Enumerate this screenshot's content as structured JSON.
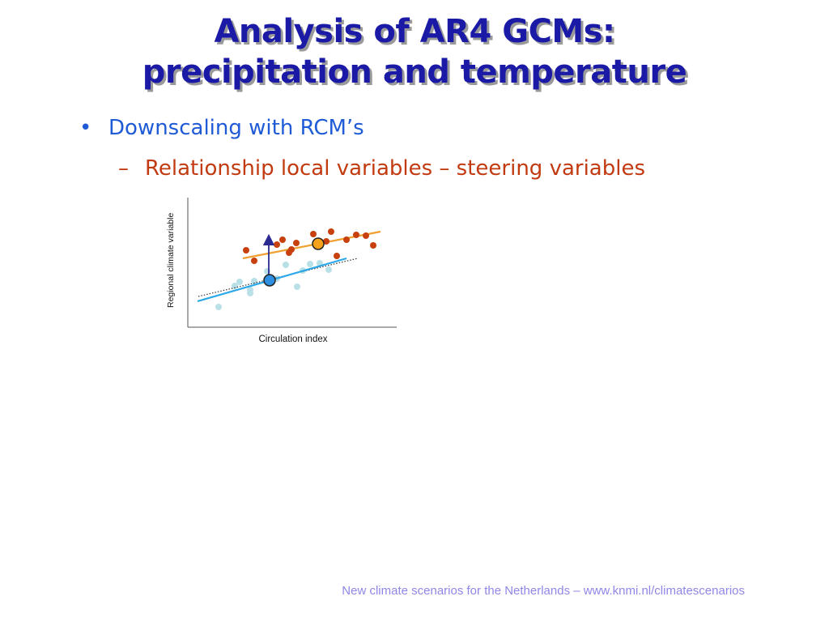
{
  "slide": {
    "title_line1": "Analysis of AR4 GCMs:",
    "title_line2": "precipitation and temperature",
    "bullet_symbol": "•",
    "bullet_text": "Downscaling with RCM’s",
    "sub_symbol": "–",
    "sub_text": "Relationship local variables – steering variables",
    "footer": "New climate scenarios for the Netherlands – www.knmi.nl/climatescenarios"
  },
  "diagram": {
    "ylabel": "Regional climate variable",
    "xlabel": "Circulation index",
    "colors": {
      "upper_points": "#c8400e",
      "upper_line": "#f0a030",
      "lower_points": "#b9e0e6",
      "lower_line": "#2aa8e8",
      "dotted_line": "#333333",
      "arrow": "#2a2a90",
      "upper_marker_fill": "#f7a21c",
      "lower_marker_fill": "#2f8fe0"
    }
  }
}
